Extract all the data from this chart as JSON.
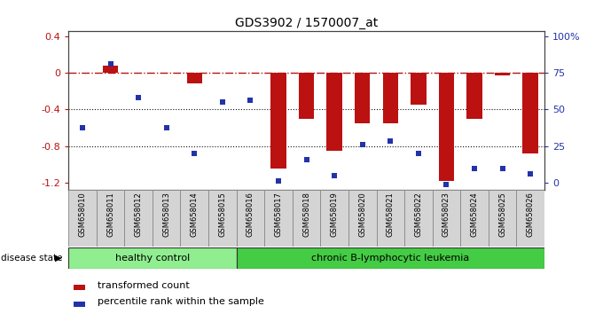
{
  "title": "GDS3902 / 1570007_at",
  "samples": [
    "GSM658010",
    "GSM658011",
    "GSM658012",
    "GSM658013",
    "GSM658014",
    "GSM658015",
    "GSM658016",
    "GSM658017",
    "GSM658018",
    "GSM658019",
    "GSM658020",
    "GSM658021",
    "GSM658022",
    "GSM658023",
    "GSM658024",
    "GSM658025",
    "GSM658026"
  ],
  "bar_values": [
    0.0,
    0.08,
    0.0,
    0.0,
    -0.12,
    0.0,
    0.0,
    -1.05,
    -0.5,
    -0.85,
    -0.55,
    -0.55,
    -0.35,
    -1.18,
    -0.5,
    -0.03,
    -0.88
  ],
  "scatter_values": [
    -0.6,
    0.1,
    -0.27,
    -0.6,
    -0.88,
    -0.32,
    -0.3,
    -1.18,
    -0.95,
    -1.12,
    -0.78,
    -0.75,
    -0.88,
    -1.22,
    -1.05,
    -1.05,
    -1.1
  ],
  "bar_color": "#bb1111",
  "scatter_color": "#2233aa",
  "hline_color": "#bb1111",
  "grid_color": "#111111",
  "ylim": [
    -1.28,
    0.45
  ],
  "yticks_left": [
    0.4,
    0.0,
    -0.4,
    -0.8,
    -1.2
  ],
  "yticks_right": [
    100,
    75,
    50,
    25,
    0
  ],
  "right_ytick_positions": [
    0.4,
    0.0,
    -0.4,
    -0.8,
    -1.2
  ],
  "healthy_control_count": 6,
  "disease_label_healthy": "healthy control",
  "disease_label_disease": "chronic B-lymphocytic leukemia",
  "disease_state_label": "disease state",
  "legend_bar_label": "transformed count",
  "legend_scatter_label": "percentile rank within the sample",
  "bar_width": 0.55,
  "cell_bg": "#d4d4d4",
  "cell_border": "#888888",
  "healthy_color": "#90ee90",
  "disease_color": "#44cc44"
}
